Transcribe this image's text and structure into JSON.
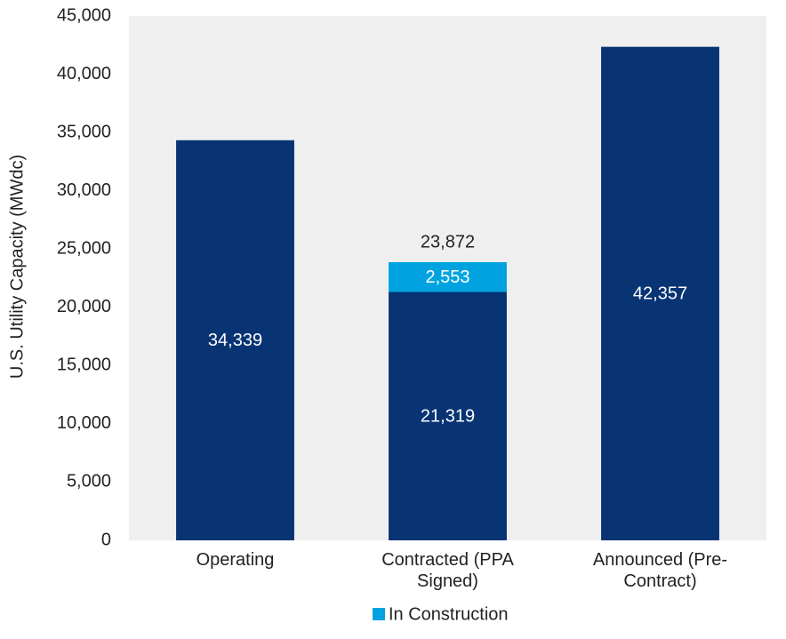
{
  "chart_data": {
    "type": "stacked-bar",
    "y_label": "U.S. Utility Capacity (MWdc)",
    "categories": [
      "Operating",
      "Contracted (PPA Signed)",
      "Announced (Pre-Contract)"
    ],
    "series": [
      {
        "color": "#083474",
        "values": [
          34339,
          21319,
          42357
        ],
        "value_labels": [
          "34,339",
          "21,319",
          "42,357"
        ]
      },
      {
        "name": "In Construction",
        "color": "#00a3e0",
        "values": [
          null,
          2553,
          null
        ],
        "value_labels": [
          null,
          "2,553",
          null
        ]
      }
    ],
    "totals": [
      null,
      23872,
      null
    ],
    "total_labels": [
      null,
      "23,872",
      null
    ],
    "ylim": [
      0,
      45000
    ],
    "yticks": [
      0,
      {
        "value": 5000,
        "label": "5,000"
      },
      {
        "value": 10000,
        "label": "10,000"
      },
      {
        "value": 15000,
        "label": "15,000"
      },
      {
        "value": 20000,
        "label": "20,000"
      },
      {
        "value": 25000,
        "label": "25,000"
      },
      {
        "value": 30000,
        "label": "30,000"
      },
      {
        "value": 35000,
        "label": "35,000"
      },
      {
        "value": 40000,
        "label": "40,000"
      },
      {
        "value": 45000,
        "label": "45,000"
      }
    ],
    "plot_background": "#efefef",
    "legend": "bottom"
  }
}
